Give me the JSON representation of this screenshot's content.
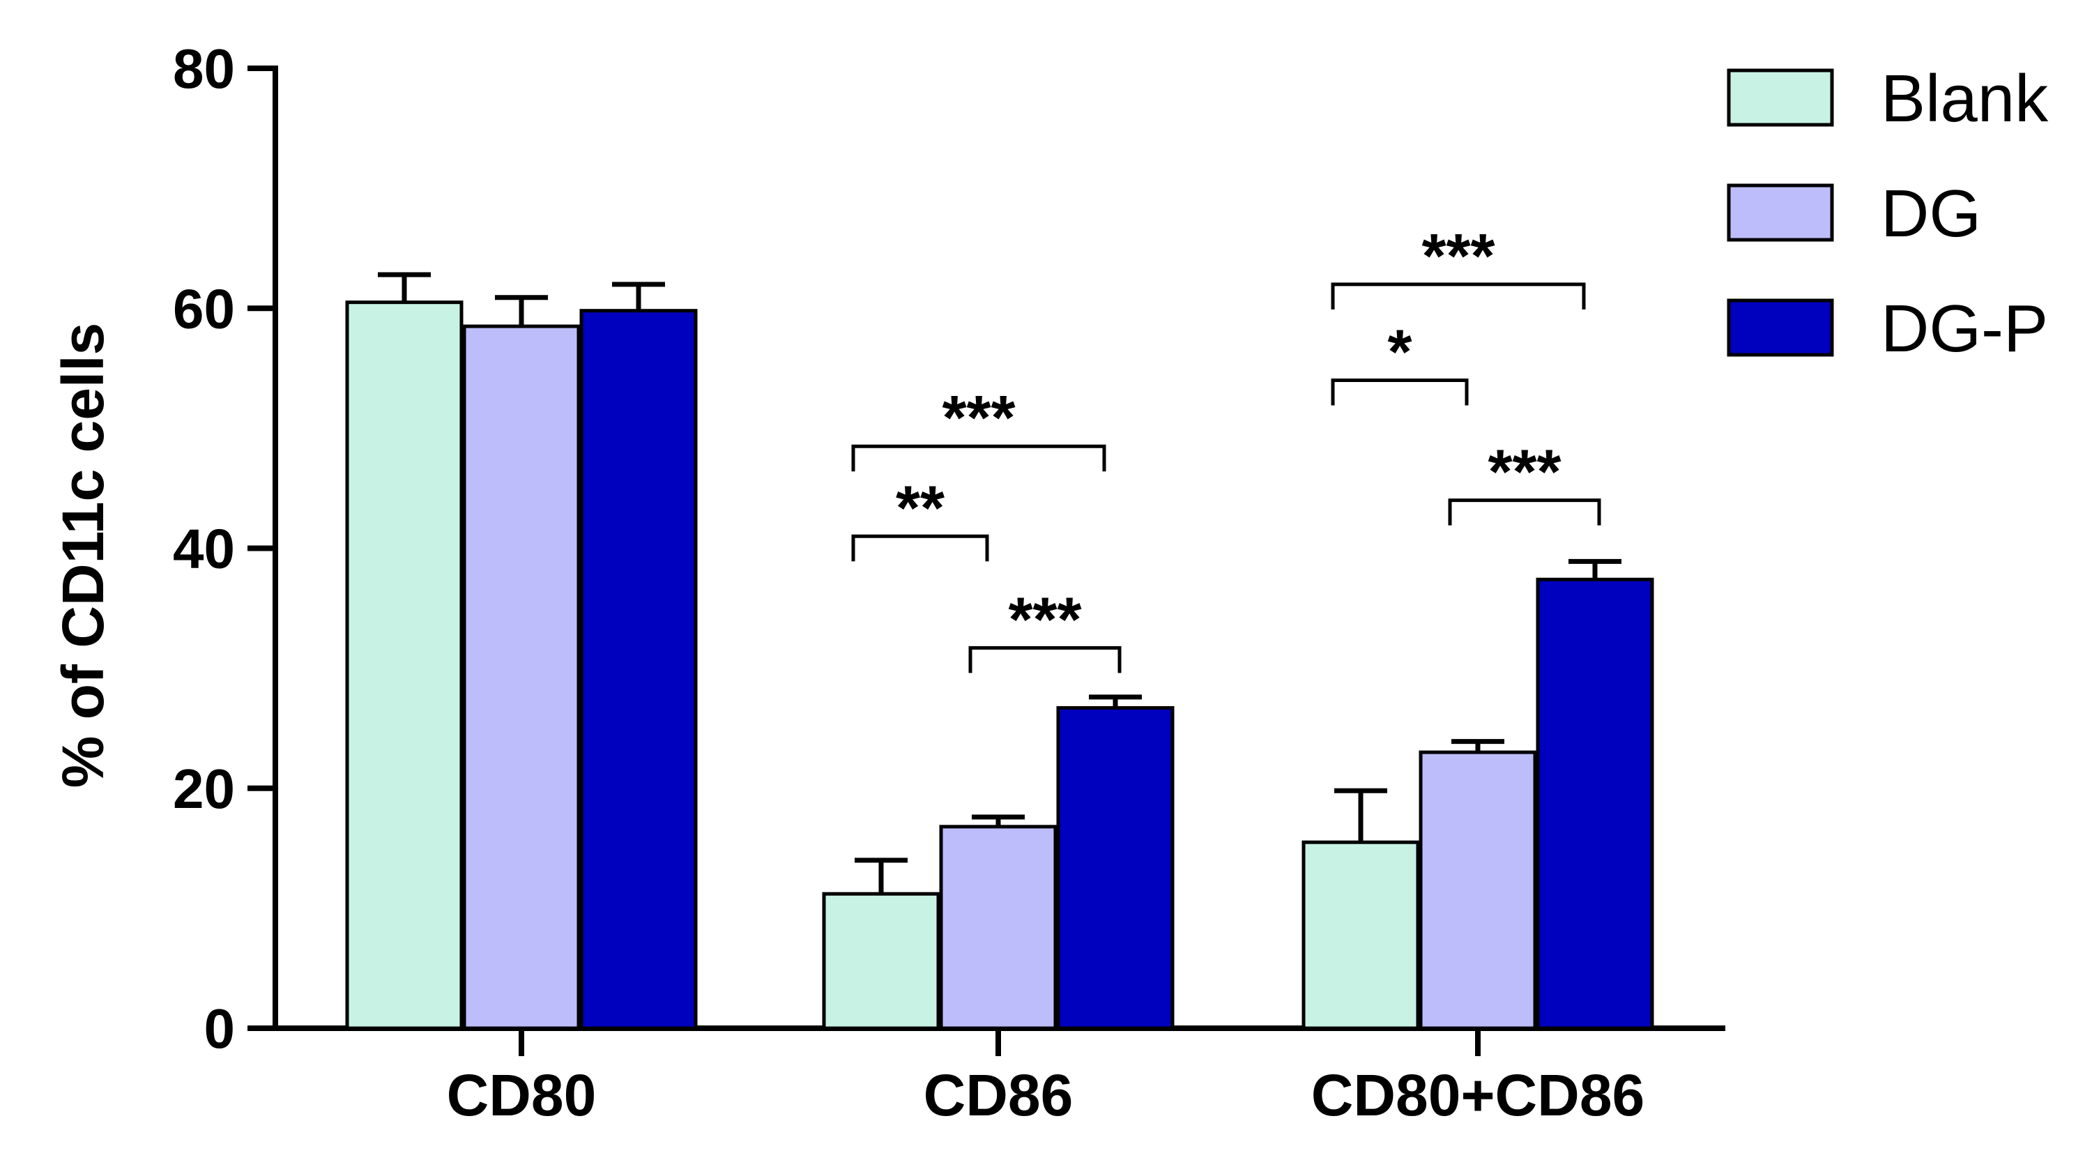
{
  "chart_data": {
    "type": "bar",
    "title": "",
    "xlabel": "",
    "ylabel": "% of CD11c cells",
    "ylim": [
      0,
      80
    ],
    "yticks": [
      "0",
      "20",
      "40",
      "60",
      "80"
    ],
    "categories": [
      "CD80",
      "CD86",
      "CD80+CD86"
    ],
    "series": [
      {
        "name": "Blank",
        "color": "#c8f3e4",
        "values": [
          60.5,
          11.2,
          15.5
        ],
        "errors": [
          2.3,
          2.8,
          4.3
        ]
      },
      {
        "name": "DG",
        "color": "#bdbdfb",
        "values": [
          58.5,
          16.8,
          23.0
        ],
        "errors": [
          2.4,
          0.8,
          0.9
        ]
      },
      {
        "name": "DG-P",
        "color": "#0000bf",
        "values": [
          59.8,
          26.7,
          37.4
        ],
        "errors": [
          2.2,
          0.9,
          1.5
        ]
      }
    ],
    "legend": {
      "position": "top-right",
      "labels": [
        "Blank",
        "DG",
        "DG-P"
      ]
    },
    "significance": [
      {
        "category": "CD86",
        "from": "Blank",
        "to": "DG-P",
        "label": "***",
        "y": 48.5
      },
      {
        "category": "CD86",
        "from": "Blank",
        "to": "DG",
        "label": "**",
        "y": 41.0
      },
      {
        "category": "CD86",
        "from": "DG",
        "to": "DG-P",
        "label": "***",
        "y": 31.7
      },
      {
        "category": "CD80+CD86",
        "from": "Blank",
        "to": "DG-P",
        "label": "***",
        "y": 62.0
      },
      {
        "category": "CD80+CD86",
        "from": "Blank",
        "to": "DG",
        "label": "*",
        "y": 54.0
      },
      {
        "category": "CD80+CD86",
        "from": "DG",
        "to": "DG-P",
        "label": "***",
        "y": 44.0
      }
    ]
  }
}
